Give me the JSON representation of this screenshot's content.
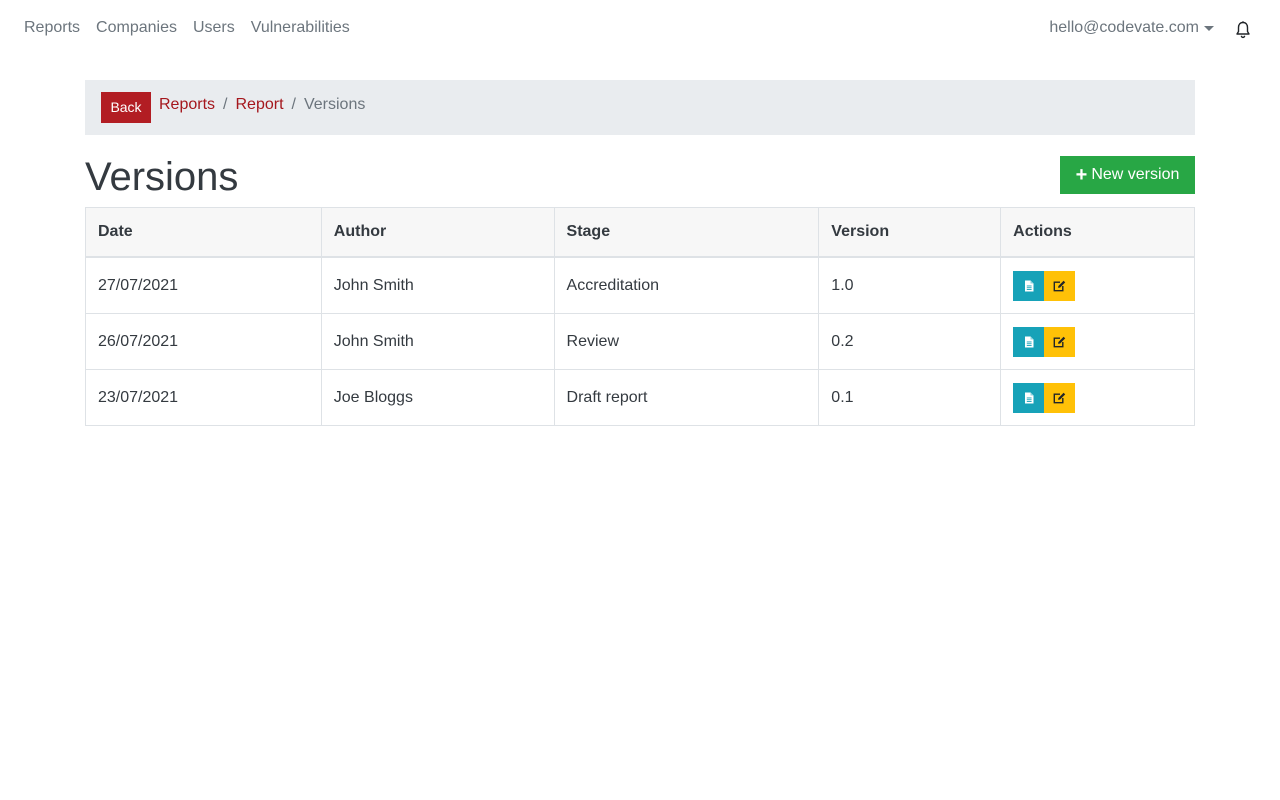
{
  "nav": {
    "links": [
      "Reports",
      "Companies",
      "Users",
      "Vulnerabilities"
    ],
    "user_email": "hello@codevate.com"
  },
  "breadcrumb": {
    "back_label": "Back",
    "items": [
      "Reports",
      "Report"
    ],
    "active": "Versions"
  },
  "page": {
    "title": "Versions",
    "new_button_label": "New version"
  },
  "table": {
    "headers": [
      "Date",
      "Author",
      "Stage",
      "Version",
      "Actions"
    ],
    "rows": [
      {
        "date": "27/07/2021",
        "author": "John Smith",
        "stage": "Accreditation",
        "version": "1.0"
      },
      {
        "date": "26/07/2021",
        "author": "John Smith",
        "stage": "Review",
        "version": "0.2"
      },
      {
        "date": "23/07/2021",
        "author": "Joe Bloggs",
        "stage": "Draft report",
        "version": "0.1"
      }
    ],
    "action_icons": [
      "file-icon",
      "edit-icon"
    ]
  },
  "colors": {
    "back": "#b21d23",
    "link": "#a5171d",
    "new_button": "#28a745",
    "view_button": "#17a2b8",
    "edit_button": "#ffc107"
  }
}
